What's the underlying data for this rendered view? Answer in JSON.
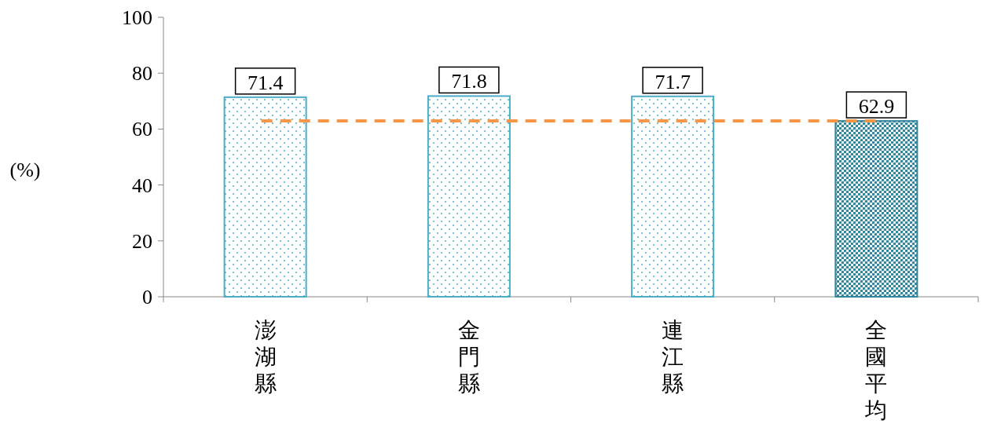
{
  "chart_data": {
    "type": "bar",
    "ylabel": "(%)",
    "categories": [
      "澎湖縣",
      "金門縣",
      "連江縣",
      "全國平均"
    ],
    "values": [
      71.4,
      71.8,
      71.7,
      62.9
    ],
    "colors": [
      "#4bacc6",
      "#4bacc6",
      "#4bacc6",
      "#31859c"
    ],
    "ylim": [
      0,
      100
    ],
    "yticks": [
      0,
      20,
      40,
      60,
      80,
      100
    ],
    "data_labels": true,
    "grid": false,
    "ref_lines": [
      {
        "axis": "y",
        "value": 62.9,
        "color": "#f79646",
        "line_style": "dashed"
      }
    ]
  }
}
